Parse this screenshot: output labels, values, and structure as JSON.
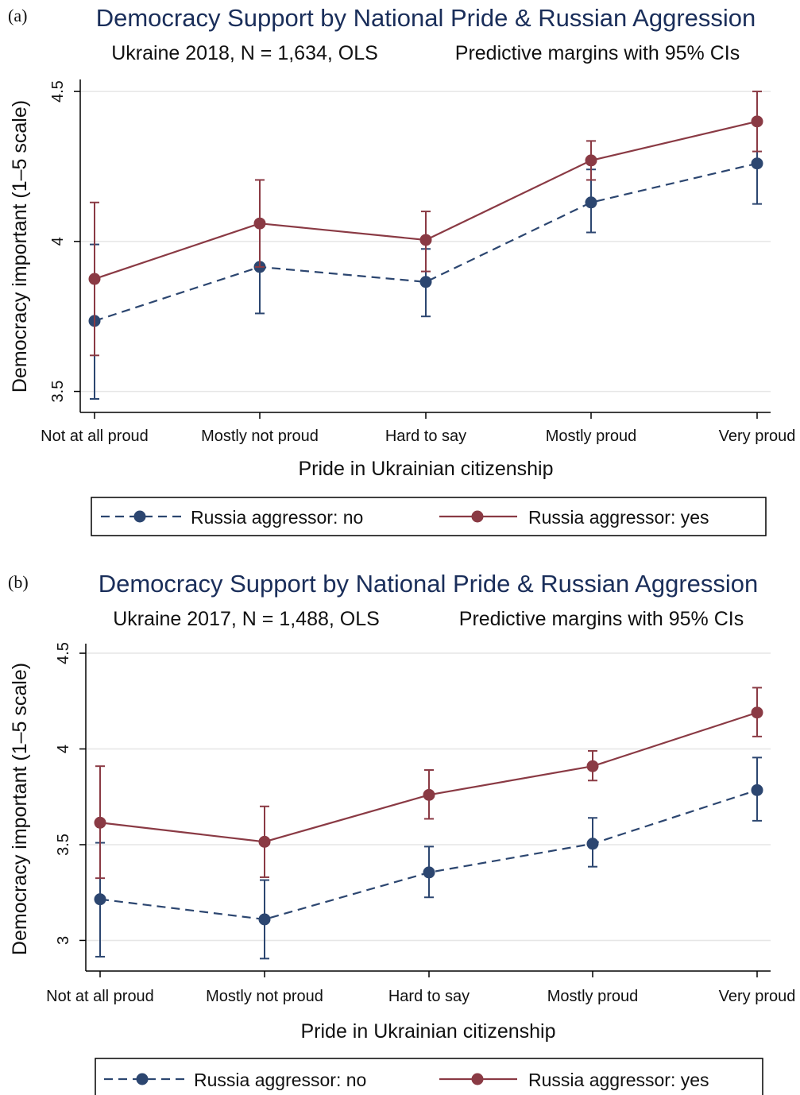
{
  "colors": {
    "series_no": "#2c4670",
    "series_yes": "#8a3a44",
    "title": "#1a2e5a",
    "grid": "#e6e6e6"
  },
  "chart_data": [
    {
      "panel_label": "(a)",
      "type": "line",
      "title": "Democracy Support by National Pride & Russian Aggression",
      "subtitle_left": "Ukraine 2018, N = 1,634, OLS",
      "subtitle_right": "Predictive margins with 95% CIs",
      "xlabel": "Pride in Ukrainian citizenship",
      "ylabel": "Democracy important (1–5 scale)",
      "categories": [
        "Not at all proud",
        "Mostly not proud",
        "Hard to say",
        "Mostly proud",
        "Very proud"
      ],
      "ylim": [
        3.43,
        4.54
      ],
      "yticks": [
        3.5,
        4,
        4.5
      ],
      "ytick_labels": [
        "3.5",
        "4",
        "4.5"
      ],
      "grid": true,
      "legend_position": "bottom",
      "series": [
        {
          "name": "Russia aggressor: no",
          "line_style": "dashed",
          "values": [
            3.735,
            3.915,
            3.865,
            4.13,
            4.26
          ],
          "ci_low": [
            3.475,
            3.76,
            3.75,
            4.03,
            4.125
          ],
          "ci_high": [
            3.99,
            4.07,
            3.975,
            4.24,
            4.4
          ]
        },
        {
          "name": "Russia aggressor: yes",
          "line_style": "solid",
          "values": [
            3.875,
            4.06,
            4.005,
            4.27,
            4.4
          ],
          "ci_low": [
            3.62,
            3.915,
            3.9,
            4.205,
            4.3
          ],
          "ci_high": [
            4.13,
            4.205,
            4.1,
            4.335,
            4.5
          ]
        }
      ]
    },
    {
      "panel_label": "(b)",
      "type": "line",
      "title": "Democracy Support by National Pride & Russian Aggression",
      "subtitle_left": "Ukraine 2017, N = 1,488, OLS",
      "subtitle_right": "Predictive margins with 95% CIs",
      "xlabel": "Pride in Ukrainian citizenship",
      "ylabel": "Democracy important (1–5 scale)",
      "categories": [
        "Not at all proud",
        "Mostly not proud",
        "Hard to say",
        "Mostly proud",
        "Very proud"
      ],
      "ylim": [
        2.84,
        4.55
      ],
      "yticks": [
        3,
        3.5,
        4,
        4.5
      ],
      "ytick_labels": [
        "3",
        "3.5",
        "4",
        "4.5"
      ],
      "grid": true,
      "legend_position": "bottom",
      "series": [
        {
          "name": "Russia aggressor: no",
          "line_style": "dashed",
          "values": [
            3.215,
            3.11,
            3.355,
            3.505,
            3.785
          ],
          "ci_low": [
            2.915,
            2.905,
            3.225,
            3.385,
            3.625
          ],
          "ci_high": [
            3.51,
            3.315,
            3.49,
            3.64,
            3.955
          ]
        },
        {
          "name": "Russia aggressor: yes",
          "line_style": "solid",
          "values": [
            3.615,
            3.515,
            3.76,
            3.91,
            4.19
          ],
          "ci_low": [
            3.325,
            3.33,
            3.635,
            3.835,
            4.065
          ],
          "ci_high": [
            3.91,
            3.7,
            3.89,
            3.99,
            4.32
          ]
        }
      ]
    }
  ]
}
